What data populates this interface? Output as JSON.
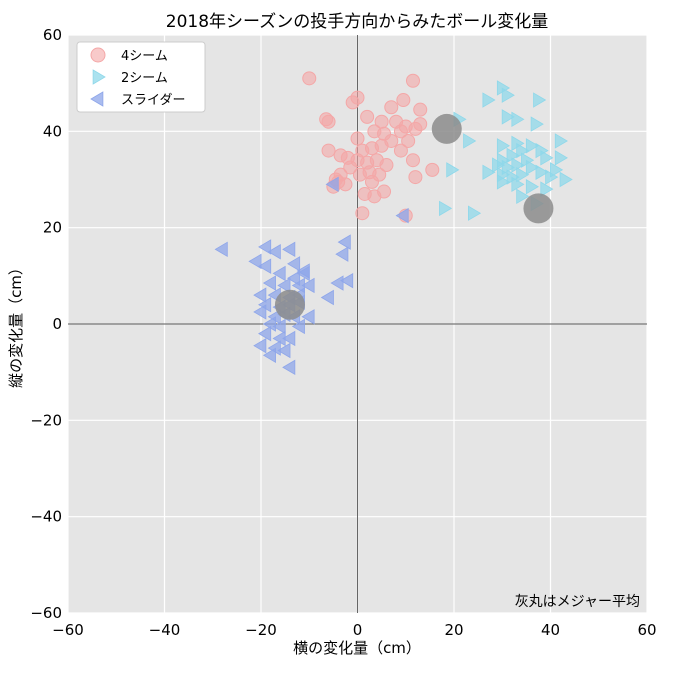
{
  "chart_data": {
    "type": "scatter",
    "title": "2018年シーズンの投手方向からみたボール変化量",
    "xlabel": "横の変化量（cm）",
    "ylabel": "縦の変化量（cm）",
    "xlim": [
      -60,
      60
    ],
    "ylim": [
      -60,
      60
    ],
    "xticks": [
      -60,
      -40,
      -20,
      0,
      20,
      40,
      60
    ],
    "yticks": [
      -60,
      -40,
      -20,
      0,
      20,
      40,
      60
    ],
    "grid": true,
    "zero_lines": true,
    "legend_position": "top-left",
    "annotation": "灰丸はメジャー平均",
    "series": [
      {
        "name": "4シーム",
        "marker": "circle",
        "color": "#f4a7a7",
        "points": [
          [
            -10,
            51
          ],
          [
            11.5,
            50.5
          ],
          [
            0,
            47
          ],
          [
            -1,
            46
          ],
          [
            9.5,
            46.5
          ],
          [
            7,
            45
          ],
          [
            13,
            44.5
          ],
          [
            -6.5,
            42.5
          ],
          [
            -6,
            42
          ],
          [
            2,
            43
          ],
          [
            5,
            42
          ],
          [
            8,
            42
          ],
          [
            10,
            41
          ],
          [
            12,
            40.5
          ],
          [
            13,
            41.5
          ],
          [
            3.5,
            40
          ],
          [
            5.5,
            39.5
          ],
          [
            9,
            40
          ],
          [
            0,
            38.5
          ],
          [
            7,
            38
          ],
          [
            10.5,
            38
          ],
          [
            -6,
            36
          ],
          [
            -3.5,
            35
          ],
          [
            1,
            36
          ],
          [
            3,
            36.5
          ],
          [
            5,
            37
          ],
          [
            9,
            36
          ],
          [
            -2,
            34.5
          ],
          [
            0,
            34
          ],
          [
            2,
            33.5
          ],
          [
            4,
            34
          ],
          [
            6,
            33
          ],
          [
            11.5,
            34
          ],
          [
            -1.5,
            32.5
          ],
          [
            0.5,
            31
          ],
          [
            2.5,
            31.5
          ],
          [
            4.5,
            31
          ],
          [
            -3.5,
            31
          ],
          [
            -4,
            29.5
          ],
          [
            -2.5,
            29
          ],
          [
            -5,
            28.5
          ],
          [
            3,
            29.5
          ],
          [
            5.5,
            27.5
          ],
          [
            12,
            30.5
          ],
          [
            15.5,
            32
          ],
          [
            1.5,
            27
          ],
          [
            3.5,
            26.5
          ],
          [
            -4.5,
            30
          ],
          [
            1,
            23
          ],
          [
            10,
            22.5
          ]
        ]
      },
      {
        "name": "2シーム",
        "marker": "triangle-right",
        "color": "#8fd8ea",
        "points": [
          [
            30,
            49
          ],
          [
            31,
            47.5
          ],
          [
            27,
            46.5
          ],
          [
            37.5,
            46.5
          ],
          [
            21,
            42.5
          ],
          [
            31,
            43
          ],
          [
            33,
            42.5
          ],
          [
            37,
            41.5
          ],
          [
            23,
            38
          ],
          [
            30,
            37
          ],
          [
            33,
            37.5
          ],
          [
            36,
            37
          ],
          [
            42,
            38
          ],
          [
            34,
            36
          ],
          [
            38,
            36
          ],
          [
            30,
            34
          ],
          [
            32,
            35
          ],
          [
            35,
            34
          ],
          [
            39,
            34.5
          ],
          [
            42,
            34.5
          ],
          [
            29,
            33
          ],
          [
            31,
            32.5
          ],
          [
            33,
            33
          ],
          [
            36,
            32.5
          ],
          [
            41,
            32
          ],
          [
            19.5,
            32
          ],
          [
            27,
            31.5
          ],
          [
            30,
            31
          ],
          [
            32,
            30.5
          ],
          [
            34,
            31
          ],
          [
            38,
            31.5
          ],
          [
            40,
            30.5
          ],
          [
            43,
            30
          ],
          [
            30,
            29.5
          ],
          [
            33,
            29
          ],
          [
            36,
            28.5
          ],
          [
            39,
            28
          ],
          [
            34,
            26.5
          ],
          [
            37,
            25
          ],
          [
            18,
            24
          ],
          [
            24,
            23
          ]
        ]
      },
      {
        "name": "スライダー",
        "marker": "triangle-left",
        "color": "#8ea6ea",
        "points": [
          [
            -28,
            15.5
          ],
          [
            -19,
            16
          ],
          [
            -17,
            15
          ],
          [
            -14,
            15.5
          ],
          [
            -21,
            13
          ],
          [
            -19,
            12
          ],
          [
            -13,
            12.5
          ],
          [
            -11,
            11
          ],
          [
            -16,
            10.5
          ],
          [
            -13,
            9.5
          ],
          [
            -11,
            10.5
          ],
          [
            -18,
            8.5
          ],
          [
            -15,
            8
          ],
          [
            -12,
            8
          ],
          [
            -10,
            8
          ],
          [
            -2,
            9
          ],
          [
            -4,
            8.5
          ],
          [
            -20,
            6
          ],
          [
            -17,
            6
          ],
          [
            -14,
            5.5
          ],
          [
            -12,
            6
          ],
          [
            -6,
            5.5
          ],
          [
            -19,
            4
          ],
          [
            -16,
            3.5
          ],
          [
            -14,
            4
          ],
          [
            -12,
            4.5
          ],
          [
            -20,
            2.5
          ],
          [
            -17,
            1.5
          ],
          [
            -15,
            2
          ],
          [
            -13,
            1.5
          ],
          [
            -10,
            1.5
          ],
          [
            -18,
            0
          ],
          [
            -16,
            -0.5
          ],
          [
            -12,
            -0.5
          ],
          [
            -19,
            -2
          ],
          [
            -16,
            -3
          ],
          [
            -14,
            -3
          ],
          [
            -20,
            -4.5
          ],
          [
            -17,
            -5
          ],
          [
            -15,
            -5.5
          ],
          [
            -18,
            -6.5
          ],
          [
            -14,
            -9
          ],
          [
            -2.5,
            17
          ],
          [
            -3,
            14.5
          ],
          [
            -5,
            29
          ],
          [
            9.5,
            22.5
          ]
        ]
      }
    ],
    "reference_points": {
      "label": "メジャー平均",
      "color": "#8c8c8c",
      "points": [
        [
          18.5,
          40.5
        ],
        [
          37.5,
          24
        ],
        [
          -14,
          4
        ]
      ]
    }
  }
}
